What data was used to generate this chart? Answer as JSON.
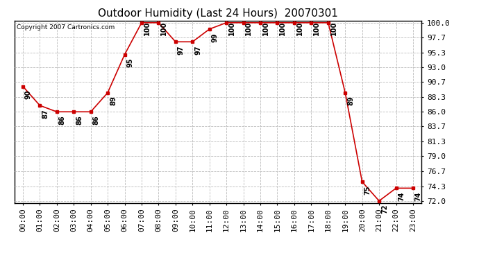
{
  "title": "Outdoor Humidity (Last 24 Hours)  20070301",
  "copyright_text": "Copyright 2007 Cartronics.com",
  "hours": [
    0,
    1,
    2,
    3,
    4,
    5,
    6,
    7,
    8,
    9,
    10,
    11,
    12,
    13,
    14,
    15,
    16,
    17,
    18,
    19,
    20,
    21,
    22,
    23
  ],
  "values": [
    90,
    87,
    86,
    86,
    86,
    89,
    95,
    100,
    100,
    97,
    97,
    99,
    100,
    100,
    100,
    100,
    100,
    100,
    100,
    89,
    75,
    72,
    74,
    74
  ],
  "x_labels": [
    "00:00",
    "01:00",
    "02:00",
    "03:00",
    "04:00",
    "05:00",
    "06:00",
    "07:00",
    "08:00",
    "09:00",
    "10:00",
    "11:00",
    "12:00",
    "13:00",
    "14:00",
    "15:00",
    "16:00",
    "17:00",
    "18:00",
    "19:00",
    "20:00",
    "21:00",
    "22:00",
    "23:00"
  ],
  "y_ticks": [
    72.0,
    74.3,
    76.7,
    79.0,
    81.3,
    83.7,
    86.0,
    88.3,
    90.7,
    93.0,
    95.3,
    97.7,
    100.0
  ],
  "y_tick_labels": [
    "72.0",
    "74.3",
    "76.7",
    "79.0",
    "81.3",
    "83.7",
    "86.0",
    "88.3",
    "90.7",
    "93.0",
    "95.3",
    "97.7",
    "100.0"
  ],
  "line_color": "#cc0000",
  "marker_color": "#cc0000",
  "bg_color": "#ffffff",
  "grid_color": "#bbbbbb",
  "title_fontsize": 11,
  "label_fontsize": 8,
  "annotation_fontsize": 7,
  "ylim_min": 72.0,
  "ylim_max": 100.0
}
